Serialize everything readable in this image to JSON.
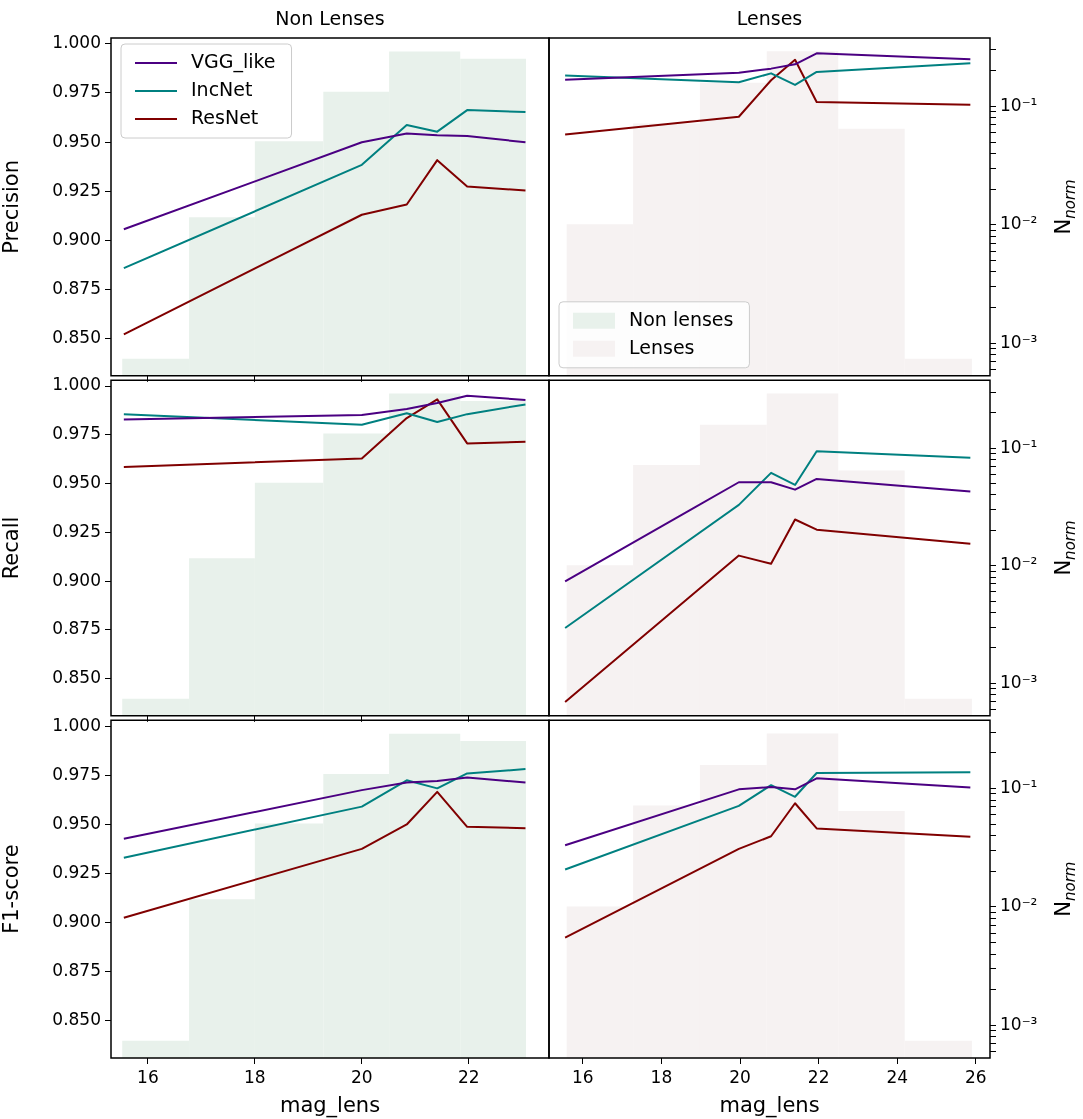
{
  "chart_data": [
    {
      "type": "line",
      "title": "Non Lenses",
      "ylabel": "Precision",
      "x": [
        15.55,
        20.0,
        20.84,
        21.41,
        21.97,
        23.06
      ],
      "xlim": [
        15.31,
        23.5
      ],
      "xticks": [
        16,
        18,
        20,
        22
      ],
      "ylim": [
        0.831,
        1.003
      ],
      "yticks": [
        {
          "value": 0.85,
          "label": "0.850"
        },
        {
          "value": 0.875,
          "label": "0.875"
        },
        {
          "value": 0.9,
          "label": "0.900"
        },
        {
          "value": 0.925,
          "label": "0.925"
        },
        {
          "value": 0.95,
          "label": "0.950"
        },
        {
          "value": 0.975,
          "label": "0.975"
        },
        {
          "value": 1,
          "label": "1.000"
        }
      ],
      "y2lim": [
        0.00053,
        0.378
      ],
      "log": "y2",
      "tick_labels": "y",
      "legend": "top left",
      "marker": "none",
      "series": [
        {
          "name": "VGG_like",
          "color": "#4b0082",
          "values": [
            0.9056,
            0.9499,
            0.9544,
            0.9535,
            0.9531,
            0.9499
          ]
        },
        {
          "name": "IncNet",
          "color": "#008080",
          "values": [
            0.8858,
            0.9384,
            0.9587,
            0.9553,
            0.9663,
            0.9653
          ]
        },
        {
          "name": "ResNet",
          "color": "#800000",
          "values": [
            0.8521,
            0.913,
            0.9182,
            0.9408,
            0.9274,
            0.9253
          ]
        },
        {
          "type": "histogram",
          "axis": "y2",
          "name": "Non lenses",
          "color": "#e8f1eb",
          "bins": [
            15.52,
            16.77,
            18.0,
            19.28,
            20.51,
            21.84,
            23.07
          ],
          "values": [
            0.00074,
            0.0116,
            0.0508,
            0.133,
            0.291,
            0.252
          ]
        }
      ]
    },
    {
      "type": "line",
      "title": "Lenses",
      "y2label": "N$_{norm}$",
      "x": [
        15.55,
        19.97,
        20.79,
        21.4,
        21.95,
        25.86
      ],
      "xlim": [
        15.14,
        26.36
      ],
      "ylim": [
        0.831,
        1.003
      ],
      "y2lim": [
        0.00053,
        0.378
      ],
      "y2ticks": [
        {
          "value": 0.0006,
          "label": null
        },
        {
          "value": 0.0007,
          "label": null
        },
        {
          "value": 0.0008,
          "label": null
        },
        {
          "value": 0.0009,
          "label": null
        },
        {
          "value": 0.001,
          "label": "10⁻³"
        },
        {
          "value": 0.002,
          "label": null
        },
        {
          "value": 0.003,
          "label": null
        },
        {
          "value": 0.004,
          "label": null
        },
        {
          "value": 0.005,
          "label": null
        },
        {
          "value": 0.006,
          "label": null
        },
        {
          "value": 0.007,
          "label": null
        },
        {
          "value": 0.008,
          "label": null
        },
        {
          "value": 0.009,
          "label": null
        },
        {
          "value": 0.01,
          "label": "10⁻²"
        },
        {
          "value": 0.02,
          "label": null
        },
        {
          "value": 0.03,
          "label": null
        },
        {
          "value": 0.04,
          "label": null
        },
        {
          "value": 0.05,
          "label": null
        },
        {
          "value": 0.06,
          "label": null
        },
        {
          "value": 0.07,
          "label": null
        },
        {
          "value": 0.08,
          "label": null
        },
        {
          "value": 0.09,
          "label": null
        },
        {
          "value": 0.1,
          "label": "10⁻¹"
        },
        {
          "value": 0.2,
          "label": null
        },
        {
          "value": 0.3,
          "label": null
        }
      ],
      "log": "y2",
      "tick_labels": "y2",
      "legend": "bottom left",
      "marker": "none",
      "series": [
        {
          "color": "#4b0082",
          "values": [
            0.9818,
            0.9853,
            0.9874,
            0.9896,
            0.9952,
            0.9922
          ]
        },
        {
          "color": "#008080",
          "values": [
            0.9839,
            0.9805,
            0.985,
            0.9791,
            0.9857,
            0.9902
          ]
        },
        {
          "color": "#800000",
          "values": [
            0.9539,
            0.9629,
            0.9815,
            0.9919,
            0.9704,
            0.969
          ]
        },
        {
          "type": "histogram",
          "axis": "y2",
          "name": "Lenses",
          "color": "#f6f2f2",
          "bins": [
            15.59,
            17.28,
            18.98,
            20.68,
            22.5,
            24.19,
            25.9
          ],
          "values": [
            0.0101,
            0.0718,
            0.158,
            0.292,
            0.0646,
            0.00074
          ]
        }
      ]
    },
    {
      "type": "line",
      "ylabel": "Recall",
      "x": [
        15.55,
        20.0,
        20.84,
        21.41,
        21.97,
        23.06
      ],
      "xlim": [
        15.31,
        23.5
      ],
      "xticks": [
        16,
        18,
        20,
        22
      ],
      "ylim": [
        0.831,
        1.003
      ],
      "yticks": [
        {
          "value": 0.85,
          "label": "0.850"
        },
        {
          "value": 0.875,
          "label": "0.875"
        },
        {
          "value": 0.9,
          "label": "0.900"
        },
        {
          "value": 0.925,
          "label": "0.925"
        },
        {
          "value": 0.95,
          "label": "0.950"
        },
        {
          "value": 0.975,
          "label": "0.975"
        },
        {
          "value": 1,
          "label": "1.000"
        }
      ],
      "y2lim": [
        0.00053,
        0.378
      ],
      "log": "y2",
      "tick_labels": "y",
      "marker": "none",
      "series": [
        {
          "color": "#4b0082",
          "values": [
            0.9829,
            0.9852,
            0.9882,
            0.9913,
            0.995,
            0.9929
          ]
        },
        {
          "color": "#008080",
          "values": [
            0.9856,
            0.9802,
            0.9861,
            0.9816,
            0.9856,
            0.9906
          ]
        },
        {
          "color": "#800000",
          "values": [
            0.9585,
            0.9629,
            0.9836,
            0.9932,
            0.9706,
            0.9715
          ]
        },
        {
          "type": "histogram",
          "axis": "y2",
          "color": "#e8f1eb",
          "bins": [
            15.52,
            16.77,
            18.0,
            19.28,
            20.51,
            21.84,
            23.07
          ],
          "values": [
            0.00074,
            0.0116,
            0.0508,
            0.133,
            0.291,
            0.252
          ]
        }
      ]
    },
    {
      "type": "line",
      "y2label": "N$_{norm}$",
      "x": [
        15.55,
        19.97,
        20.79,
        21.4,
        21.95,
        25.86
      ],
      "xlim": [
        15.14,
        26.36
      ],
      "ylim": [
        0.831,
        1.003
      ],
      "y2lim": [
        0.00053,
        0.378
      ],
      "y2ticks": [
        {
          "value": 0.0006,
          "label": null
        },
        {
          "value": 0.0007,
          "label": null
        },
        {
          "value": 0.0008,
          "label": null
        },
        {
          "value": 0.0009,
          "label": null
        },
        {
          "value": 0.001,
          "label": "10⁻³"
        },
        {
          "value": 0.002,
          "label": null
        },
        {
          "value": 0.003,
          "label": null
        },
        {
          "value": 0.004,
          "label": null
        },
        {
          "value": 0.005,
          "label": null
        },
        {
          "value": 0.006,
          "label": null
        },
        {
          "value": 0.007,
          "label": null
        },
        {
          "value": 0.008,
          "label": null
        },
        {
          "value": 0.009,
          "label": null
        },
        {
          "value": 0.01,
          "label": "10⁻²"
        },
        {
          "value": 0.02,
          "label": null
        },
        {
          "value": 0.03,
          "label": null
        },
        {
          "value": 0.04,
          "label": null
        },
        {
          "value": 0.05,
          "label": null
        },
        {
          "value": 0.06,
          "label": null
        },
        {
          "value": 0.07,
          "label": null
        },
        {
          "value": 0.08,
          "label": null
        },
        {
          "value": 0.09,
          "label": null
        },
        {
          "value": 0.1,
          "label": "10⁻¹"
        },
        {
          "value": 0.2,
          "label": null
        },
        {
          "value": 0.3,
          "label": null
        }
      ],
      "log": "y2",
      "tick_labels": "y2",
      "marker": "none",
      "series": [
        {
          "color": "#4b0082",
          "values": [
            0.8999,
            0.9507,
            0.9507,
            0.9469,
            0.9524,
            0.946
          ]
        },
        {
          "color": "#008080",
          "values": [
            0.876,
            0.9391,
            0.9555,
            0.9493,
            0.9666,
            0.9632
          ]
        },
        {
          "color": "#800000",
          "values": [
            0.8381,
            0.9131,
            0.9089,
            0.9316,
            0.9264,
            0.9192
          ]
        },
        {
          "type": "histogram",
          "axis": "y2",
          "color": "#f6f2f2",
          "bins": [
            15.59,
            17.28,
            18.98,
            20.68,
            22.5,
            24.19,
            25.9
          ],
          "values": [
            0.0101,
            0.0718,
            0.158,
            0.292,
            0.0646,
            0.00074
          ]
        }
      ]
    },
    {
      "type": "line",
      "ylabel": "F1-score",
      "xlabel": "mag_lens",
      "x": [
        15.55,
        20.0,
        20.84,
        21.41,
        21.97,
        23.06
      ],
      "xlim": [
        15.31,
        23.5
      ],
      "xticks": [
        16,
        18,
        20,
        22
      ],
      "ylim": [
        0.831,
        1.003
      ],
      "yticks": [
        {
          "value": 0.85,
          "label": "0.850"
        },
        {
          "value": 0.875,
          "label": "0.875"
        },
        {
          "value": 0.9,
          "label": "0.900"
        },
        {
          "value": 0.925,
          "label": "0.925"
        },
        {
          "value": 0.95,
          "label": "0.950"
        },
        {
          "value": 0.975,
          "label": "0.975"
        },
        {
          "value": 1,
          "label": "1.000"
        }
      ],
      "y2lim": [
        0.00053,
        0.378
      ],
      "log": "y2",
      "tick_labels": "xy",
      "marker": "none",
      "series": [
        {
          "color": "#4b0082",
          "values": [
            0.9426,
            0.9674,
            0.9713,
            0.972,
            0.9738,
            0.9713
          ]
        },
        {
          "color": "#008080",
          "values": [
            0.933,
            0.959,
            0.9724,
            0.9683,
            0.9759,
            0.9781
          ]
        },
        {
          "color": "#800000",
          "values": [
            0.9024,
            0.9375,
            0.9499,
            0.9665,
            0.9487,
            0.948
          ]
        },
        {
          "type": "histogram",
          "axis": "y2",
          "color": "#e8f1eb",
          "bins": [
            15.52,
            16.77,
            18.0,
            19.28,
            20.51,
            21.84,
            23.07
          ],
          "values": [
            0.00074,
            0.0116,
            0.0508,
            0.133,
            0.291,
            0.252
          ]
        }
      ]
    },
    {
      "type": "line",
      "xlabel": "mag_lens",
      "y2label": "N$_{norm}$",
      "x": [
        15.55,
        19.97,
        20.79,
        21.4,
        21.95,
        25.86
      ],
      "xlim": [
        15.14,
        26.36
      ],
      "xticks": [
        16,
        18,
        20,
        22,
        24,
        26
      ],
      "ylim": [
        0.831,
        1.003
      ],
      "y2lim": [
        0.00053,
        0.378
      ],
      "y2ticks": [
        {
          "value": 0.0006,
          "label": null
        },
        {
          "value": 0.0007,
          "label": null
        },
        {
          "value": 0.0008,
          "label": null
        },
        {
          "value": 0.0009,
          "label": null
        },
        {
          "value": 0.001,
          "label": "10⁻³"
        },
        {
          "value": 0.002,
          "label": null
        },
        {
          "value": 0.003,
          "label": null
        },
        {
          "value": 0.004,
          "label": null
        },
        {
          "value": 0.005,
          "label": null
        },
        {
          "value": 0.006,
          "label": null
        },
        {
          "value": 0.007,
          "label": null
        },
        {
          "value": 0.008,
          "label": null
        },
        {
          "value": 0.009,
          "label": null
        },
        {
          "value": 0.01,
          "label": "10⁻²"
        },
        {
          "value": 0.02,
          "label": null
        },
        {
          "value": 0.03,
          "label": null
        },
        {
          "value": 0.04,
          "label": null
        },
        {
          "value": 0.05,
          "label": null
        },
        {
          "value": 0.06,
          "label": null
        },
        {
          "value": 0.07,
          "label": null
        },
        {
          "value": 0.08,
          "label": null
        },
        {
          "value": 0.09,
          "label": null
        },
        {
          "value": 0.1,
          "label": "10⁻¹"
        },
        {
          "value": 0.2,
          "label": null
        },
        {
          "value": 0.3,
          "label": null
        }
      ],
      "log": "y2",
      "tick_labels": "xy2",
      "marker": "none",
      "series": [
        {
          "color": "#4b0082",
          "values": [
            0.9393,
            0.9678,
            0.969,
            0.9678,
            0.9734,
            0.9687
          ]
        },
        {
          "color": "#008080",
          "values": [
            0.927,
            0.9594,
            0.9699,
            0.964,
            0.9761,
            0.9765
          ]
        },
        {
          "color": "#800000",
          "values": [
            0.8923,
            0.9375,
            0.9439,
            0.9607,
            0.9479,
            0.9436
          ]
        },
        {
          "type": "histogram",
          "axis": "y2",
          "color": "#f6f2f2",
          "bins": [
            15.59,
            17.28,
            18.98,
            20.68,
            22.5,
            24.19,
            25.9
          ],
          "values": [
            0.0101,
            0.0718,
            0.158,
            0.292,
            0.0646,
            0.00074
          ]
        }
      ]
    }
  ]
}
